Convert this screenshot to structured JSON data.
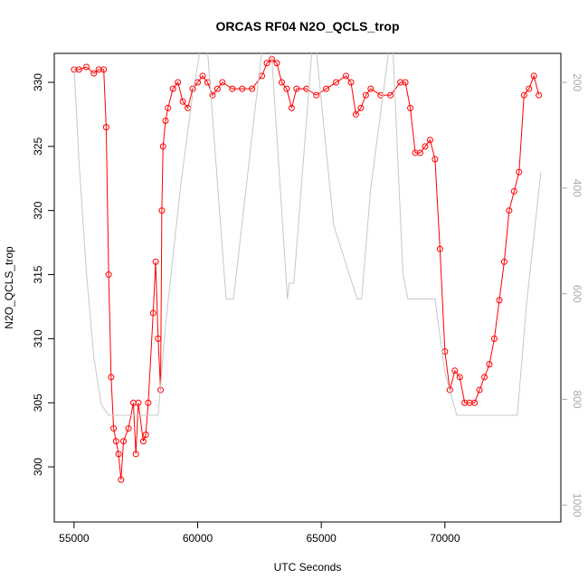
{
  "chart_data": {
    "type": "scatter",
    "title": "ORCAS RF04 N2O_QCLS_trop",
    "x_label": "UTC Seconds",
    "y_label": "N2O_QCLS_trop",
    "xlim": [
      54200,
      74690
    ],
    "xticks": [
      55000,
      60000,
      65000,
      70000
    ],
    "ylim": [
      295.7,
      332.26
    ],
    "yticks": [
      300,
      305,
      310,
      315,
      320,
      325,
      330
    ],
    "y2lim": [
      1032,
      145
    ],
    "y2ticks": [
      200,
      400,
      600,
      800,
      1000
    ],
    "series": [
      {
        "color": "#ff0000",
        "x": [
          55000,
          55200,
          55500,
          55800,
          56000,
          56200,
          56300,
          56400,
          56500,
          56600,
          56700,
          56800,
          56900,
          57000,
          57200,
          57400,
          57500,
          57600,
          57800,
          57900,
          58000,
          58200,
          58300,
          58400,
          58500,
          58550,
          58600,
          58700,
          58800,
          59000,
          59200,
          59400,
          59600,
          59800,
          60000,
          60200,
          60400,
          60600,
          60800,
          61000,
          61400,
          61800,
          62200,
          62600,
          62800,
          63000,
          63200,
          63400,
          63600,
          63800,
          64000,
          64400,
          64800,
          65200,
          65600,
          66000,
          66200,
          66400,
          66600,
          66800,
          67000,
          67400,
          67800,
          68200,
          68400,
          68600,
          68800,
          69000,
          69200,
          69400,
          69600,
          69800,
          70000,
          70200,
          70400,
          70600,
          70800,
          71000,
          71200,
          71400,
          71600,
          71800,
          72000,
          72200,
          72400,
          72600,
          72800,
          73000,
          73200,
          73400,
          73600,
          73800
        ],
        "values": [
          331,
          331,
          331.2,
          330.7,
          331,
          331,
          326.5,
          315,
          307,
          303,
          302,
          301,
          299,
          302,
          303,
          305,
          301,
          305,
          302,
          302.5,
          305,
          312,
          316,
          310,
          306,
          320,
          325,
          327,
          328,
          329.5,
          330,
          328.5,
          328,
          329.5,
          330,
          330.5,
          330,
          329,
          329.5,
          330,
          329.5,
          329.5,
          329.5,
          330.5,
          331.5,
          331.8,
          331.5,
          330,
          329.5,
          328,
          329.5,
          329.5,
          329,
          329.5,
          330,
          330.5,
          330,
          327.5,
          328,
          329,
          329.5,
          329,
          329,
          330,
          330,
          328,
          324.5,
          324.5,
          325,
          325.5,
          324,
          317,
          309,
          306,
          307.5,
          307,
          305,
          305,
          305,
          306,
          307,
          308,
          310,
          313,
          316,
          320,
          321.5,
          323,
          329,
          329.5,
          330.5,
          329
        ]
      },
      {
        "color": "#c8c8c8",
        "axis": "y2",
        "x": [
          55000,
          55200,
          55500,
          55800,
          56100,
          56400,
          58400,
          58700,
          59300,
          59800,
          60100,
          60400,
          61150,
          61450,
          62200,
          62600,
          62980,
          63630,
          63700,
          63890,
          64620,
          64800,
          65500,
          66450,
          66630,
          67000,
          67730,
          67900,
          68300,
          68500,
          69600,
          70000,
          70480,
          72930,
          73300,
          73880
        ],
        "values": [
          170,
          350,
          560,
          720,
          810,
          830,
          830,
          660,
          400,
          220,
          140,
          140,
          610,
          610,
          300,
          140,
          140,
          610,
          580,
          580,
          140,
          140,
          470,
          610,
          610,
          400,
          140,
          140,
          560,
          610,
          610,
          750,
          830,
          830,
          620,
          370
        ]
      }
    ]
  }
}
